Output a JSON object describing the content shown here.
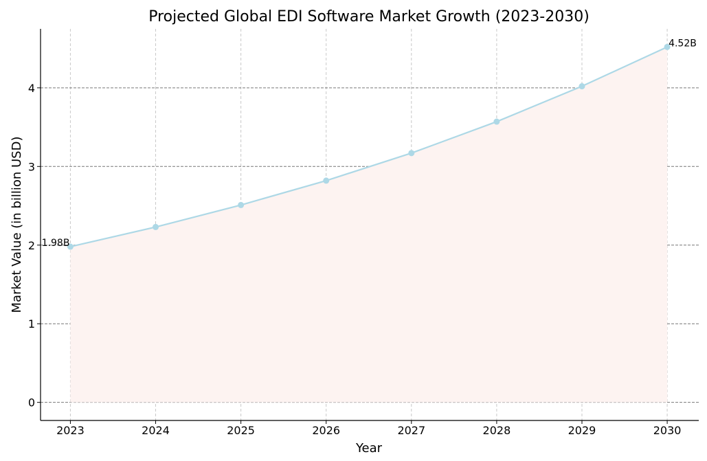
{
  "chart_data": {
    "type": "area",
    "title": "Projected Global EDI Software Market Growth (2023-2030)",
    "xlabel": "Year",
    "ylabel": "Market Value (in billion USD)",
    "x": [
      2023,
      2024,
      2025,
      2026,
      2027,
      2028,
      2029,
      2030
    ],
    "series": [
      {
        "values": [
          1.98,
          2.23,
          2.51,
          2.82,
          3.17,
          3.57,
          4.02,
          4.52
        ],
        "line_color": "#add8e6",
        "fill_color": "#fdf3f1"
      }
    ],
    "xlim": [
      2022.65,
      2030.37
    ],
    "ylim": [
      -0.23,
      4.75
    ],
    "y_ticks": [
      0,
      1,
      2,
      3,
      4
    ],
    "x_ticks": [
      2023,
      2024,
      2025,
      2026,
      2027,
      2028,
      2029,
      2030
    ],
    "annotations": [
      {
        "x": 2023,
        "y": 1.98,
        "text": "1.98B"
      },
      {
        "x": 2030,
        "y": 4.52,
        "text": "4.52B"
      }
    ],
    "grid": true,
    "legend": "none"
  }
}
